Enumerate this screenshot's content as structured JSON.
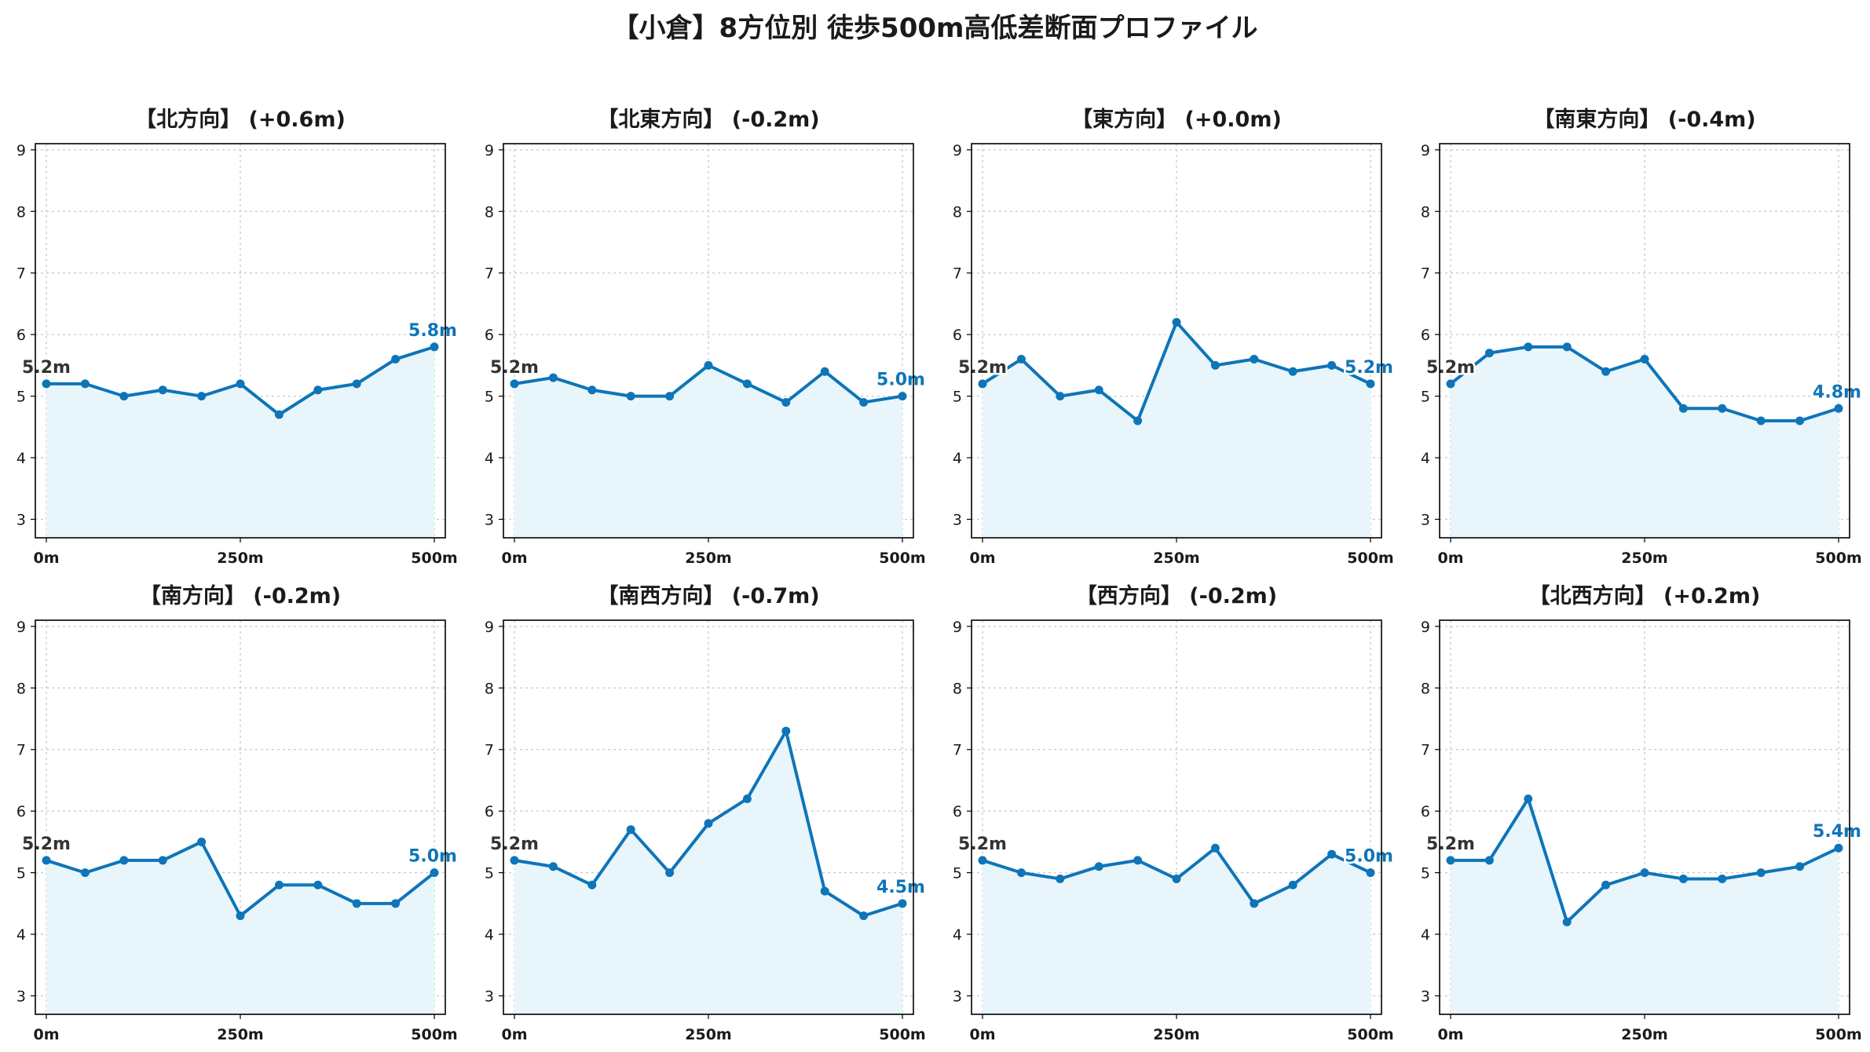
{
  "title": "【小倉】8方位別 徒歩500m高低差断面プロファイル",
  "colors": {
    "line": "#0e75b8",
    "fill": "#e8f6fc",
    "start_label": "#333333",
    "end_label": "#0e75b8",
    "grid": "#c8c8c8"
  },
  "chart_data": [
    {
      "type": "area",
      "title": "【北方向】 (+0.6m)",
      "x": [
        0,
        50,
        100,
        150,
        200,
        250,
        300,
        350,
        400,
        450,
        500
      ],
      "values": [
        5.2,
        5.2,
        5.0,
        5.1,
        5.0,
        5.2,
        4.7,
        5.1,
        5.2,
        5.6,
        5.8
      ],
      "start_label": "5.2m",
      "end_label": "5.8m",
      "xticks": [
        "0m",
        "250m",
        "500m"
      ],
      "yticks": [
        "3",
        "4",
        "5",
        "6",
        "7",
        "8",
        "9"
      ],
      "xlim": [
        0,
        500
      ],
      "ylim": [
        2.7,
        9.1
      ],
      "grid": true
    },
    {
      "type": "area",
      "title": "【北東方向】 (-0.2m)",
      "x": [
        0,
        50,
        100,
        150,
        200,
        250,
        300,
        350,
        400,
        450,
        500
      ],
      "values": [
        5.2,
        5.3,
        5.1,
        5.0,
        5.0,
        5.5,
        5.2,
        4.9,
        5.4,
        4.9,
        5.0
      ],
      "start_label": "5.2m",
      "end_label": "5.0m",
      "xticks": [
        "0m",
        "250m",
        "500m"
      ],
      "yticks": [
        "3",
        "4",
        "5",
        "6",
        "7",
        "8",
        "9"
      ],
      "xlim": [
        0,
        500
      ],
      "ylim": [
        2.7,
        9.1
      ],
      "grid": true
    },
    {
      "type": "area",
      "title": "【東方向】 (+0.0m)",
      "x": [
        0,
        50,
        100,
        150,
        200,
        250,
        300,
        350,
        400,
        450,
        500
      ],
      "values": [
        5.2,
        5.6,
        5.0,
        5.1,
        4.6,
        6.2,
        5.5,
        5.6,
        5.4,
        5.5,
        5.2
      ],
      "start_label": "5.2m",
      "end_label": "5.2m",
      "xticks": [
        "0m",
        "250m",
        "500m"
      ],
      "yticks": [
        "3",
        "4",
        "5",
        "6",
        "7",
        "8",
        "9"
      ],
      "xlim": [
        0,
        500
      ],
      "ylim": [
        2.7,
        9.1
      ],
      "grid": true
    },
    {
      "type": "area",
      "title": "【南東方向】 (-0.4m)",
      "x": [
        0,
        50,
        100,
        150,
        200,
        250,
        300,
        350,
        400,
        450,
        500
      ],
      "values": [
        5.2,
        5.7,
        5.8,
        5.8,
        5.4,
        5.6,
        4.8,
        4.8,
        4.6,
        4.6,
        4.8
      ],
      "start_label": "5.2m",
      "end_label": "4.8m",
      "xticks": [
        "0m",
        "250m",
        "500m"
      ],
      "yticks": [
        "3",
        "4",
        "5",
        "6",
        "7",
        "8",
        "9"
      ],
      "xlim": [
        0,
        500
      ],
      "ylim": [
        2.7,
        9.1
      ],
      "grid": true
    },
    {
      "type": "area",
      "title": "【南方向】 (-0.2m)",
      "x": [
        0,
        50,
        100,
        150,
        200,
        250,
        300,
        350,
        400,
        450,
        500
      ],
      "values": [
        5.2,
        5.0,
        5.2,
        5.2,
        5.5,
        4.3,
        4.8,
        4.8,
        4.5,
        4.5,
        5.0
      ],
      "start_label": "5.2m",
      "end_label": "5.0m",
      "xticks": [
        "0m",
        "250m",
        "500m"
      ],
      "yticks": [
        "3",
        "4",
        "5",
        "6",
        "7",
        "8",
        "9"
      ],
      "xlim": [
        0,
        500
      ],
      "ylim": [
        2.7,
        9.1
      ],
      "grid": true
    },
    {
      "type": "area",
      "title": "【南西方向】 (-0.7m)",
      "x": [
        0,
        50,
        100,
        150,
        200,
        250,
        300,
        350,
        400,
        450,
        500
      ],
      "values": [
        5.2,
        5.1,
        4.8,
        5.7,
        5.0,
        5.8,
        6.2,
        7.3,
        4.7,
        4.3,
        4.5
      ],
      "start_label": "5.2m",
      "end_label": "4.5m",
      "xticks": [
        "0m",
        "250m",
        "500m"
      ],
      "yticks": [
        "3",
        "4",
        "5",
        "6",
        "7",
        "8",
        "9"
      ],
      "xlim": [
        0,
        500
      ],
      "ylim": [
        2.7,
        9.1
      ],
      "grid": true
    },
    {
      "type": "area",
      "title": "【西方向】 (-0.2m)",
      "x": [
        0,
        50,
        100,
        150,
        200,
        250,
        300,
        350,
        400,
        450,
        500
      ],
      "values": [
        5.2,
        5.0,
        4.9,
        5.1,
        5.2,
        4.9,
        5.4,
        4.5,
        4.8,
        5.3,
        5.0
      ],
      "start_label": "5.2m",
      "end_label": "5.0m",
      "xticks": [
        "0m",
        "250m",
        "500m"
      ],
      "yticks": [
        "3",
        "4",
        "5",
        "6",
        "7",
        "8",
        "9"
      ],
      "xlim": [
        0,
        500
      ],
      "ylim": [
        2.7,
        9.1
      ],
      "grid": true
    },
    {
      "type": "area",
      "title": "【北西方向】 (+0.2m)",
      "x": [
        0,
        50,
        100,
        150,
        200,
        250,
        300,
        350,
        400,
        450,
        500
      ],
      "values": [
        5.2,
        5.2,
        6.2,
        4.2,
        4.8,
        5.0,
        4.9,
        4.9,
        5.0,
        5.1,
        5.4
      ],
      "start_label": "5.2m",
      "end_label": "5.4m",
      "xticks": [
        "0m",
        "250m",
        "500m"
      ],
      "yticks": [
        "3",
        "4",
        "5",
        "6",
        "7",
        "8",
        "9"
      ],
      "xlim": [
        0,
        500
      ],
      "ylim": [
        2.7,
        9.1
      ],
      "grid": true
    }
  ]
}
